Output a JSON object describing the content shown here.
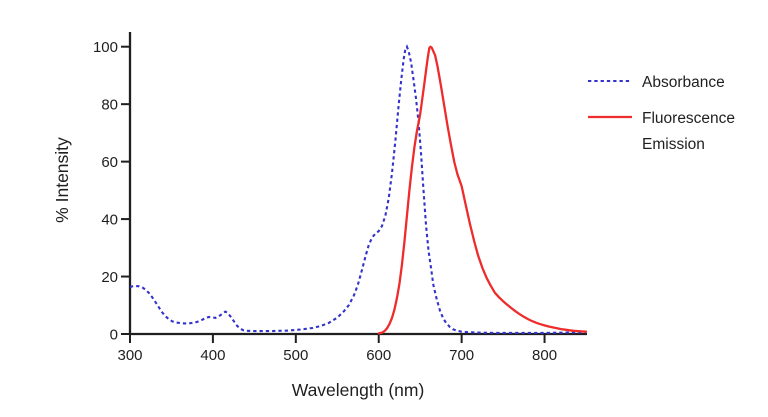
{
  "colors": {
    "absorbance_line": "#3333cc",
    "emission_line": "#ee2c2c",
    "axis": "#1f1f1f",
    "background": "#ffffff"
  },
  "legend": {
    "absorbance": "Absorbance",
    "emission_line1": "Fluorescence",
    "emission_line2": "Emission"
  },
  "chart_data": {
    "type": "line",
    "title": "",
    "xlabel": "Wavelength (nm)",
    "ylabel": "% Intensity",
    "xlim": [
      300,
      850
    ],
    "ylim": [
      0,
      100
    ],
    "x_ticks": [
      300,
      400,
      500,
      600,
      700,
      800
    ],
    "y_ticks": [
      0,
      20,
      40,
      60,
      80,
      100
    ],
    "grid": false,
    "legend_position": "right-outside",
    "series": [
      {
        "name": "Absorbance",
        "color": "#3333cc",
        "line_style": "dotted",
        "points": [
          [
            300,
            16.3
          ],
          [
            303,
            16.6
          ],
          [
            307,
            16.7
          ],
          [
            311,
            16.6
          ],
          [
            315,
            16.2
          ],
          [
            319,
            15.4
          ],
          [
            323,
            14.2
          ],
          [
            327,
            12.7
          ],
          [
            331,
            11.0
          ],
          [
            335,
            9.2
          ],
          [
            339,
            7.5
          ],
          [
            343,
            6.1
          ],
          [
            347,
            5.1
          ],
          [
            351,
            4.4
          ],
          [
            356,
            4.0
          ],
          [
            361,
            3.8
          ],
          [
            366,
            3.7
          ],
          [
            371,
            3.7
          ],
          [
            376,
            3.9
          ],
          [
            381,
            4.2
          ],
          [
            386,
            4.8
          ],
          [
            391,
            5.5
          ],
          [
            395,
            5.9
          ],
          [
            399,
            5.8
          ],
          [
            403,
            5.6
          ],
          [
            407,
            6.1
          ],
          [
            411,
            7.0
          ],
          [
            415,
            7.8
          ],
          [
            418,
            7.3
          ],
          [
            421,
            6.2
          ],
          [
            425,
            4.6
          ],
          [
            429,
            2.9
          ],
          [
            433,
            1.8
          ],
          [
            437,
            1.3
          ],
          [
            441,
            1.1
          ],
          [
            450,
            1.0
          ],
          [
            460,
            1.0
          ],
          [
            470,
            1.0
          ],
          [
            480,
            1.1
          ],
          [
            490,
            1.2
          ],
          [
            500,
            1.4
          ],
          [
            510,
            1.7
          ],
          [
            520,
            2.1
          ],
          [
            530,
            2.8
          ],
          [
            540,
            3.9
          ],
          [
            550,
            5.7
          ],
          [
            558,
            7.9
          ],
          [
            564,
            10.1
          ],
          [
            570,
            13.4
          ],
          [
            575,
            17.3
          ],
          [
            580,
            22.5
          ],
          [
            584,
            27.0
          ],
          [
            588,
            31.0
          ],
          [
            592,
            33.6
          ],
          [
            596,
            34.9
          ],
          [
            600,
            35.8
          ],
          [
            604,
            37.6
          ],
          [
            608,
            41.2
          ],
          [
            612,
            47.2
          ],
          [
            616,
            56.0
          ],
          [
            620,
            67.0
          ],
          [
            624,
            79.5
          ],
          [
            627,
            88.0
          ],
          [
            630,
            95.5
          ],
          [
            632,
            99.0
          ],
          [
            634,
            100.0
          ],
          [
            636,
            98.5
          ],
          [
            639,
            94.5
          ],
          [
            642,
            88.5
          ],
          [
            645,
            82.0
          ],
          [
            648,
            74.0
          ],
          [
            651,
            63.0
          ],
          [
            654,
            50.0
          ],
          [
            657,
            38.0
          ],
          [
            660,
            29.0
          ],
          [
            663,
            23.0
          ],
          [
            666,
            17.0
          ],
          [
            670,
            12.0
          ],
          [
            674,
            8.0
          ],
          [
            678,
            5.3
          ],
          [
            682,
            3.6
          ],
          [
            686,
            2.4
          ],
          [
            690,
            1.6
          ],
          [
            695,
            1.1
          ],
          [
            700,
            0.8
          ],
          [
            710,
            0.6
          ],
          [
            720,
            0.5
          ],
          [
            740,
            0.4
          ],
          [
            760,
            0.4
          ],
          [
            780,
            0.4
          ],
          [
            800,
            0.4
          ],
          [
            825,
            0.5
          ],
          [
            850,
            0.6
          ]
        ]
      },
      {
        "name": "Fluorescence Emission",
        "color": "#ee2c2c",
        "line_style": "solid",
        "points": [
          [
            600,
            0.2
          ],
          [
            604,
            0.5
          ],
          [
            607,
            1.0
          ],
          [
            610,
            2.0
          ],
          [
            613,
            3.5
          ],
          [
            616,
            5.6
          ],
          [
            619,
            8.6
          ],
          [
            622,
            12.6
          ],
          [
            625,
            17.6
          ],
          [
            628,
            24.0
          ],
          [
            631,
            32.0
          ],
          [
            634,
            41.0
          ],
          [
            637,
            50.0
          ],
          [
            640,
            58.0
          ],
          [
            643,
            65.0
          ],
          [
            646,
            70.6
          ],
          [
            648,
            73.4
          ],
          [
            650,
            76.6
          ],
          [
            652,
            80.6
          ],
          [
            655,
            87.0
          ],
          [
            657,
            91.6
          ],
          [
            659,
            95.8
          ],
          [
            661,
            99.5
          ],
          [
            662.5,
            100.0
          ],
          [
            664,
            99.6
          ],
          [
            668,
            97.0
          ],
          [
            671,
            93.0
          ],
          [
            675,
            86.5
          ],
          [
            679,
            79.5
          ],
          [
            683,
            72.5
          ],
          [
            687,
            66.0
          ],
          [
            691,
            60.0
          ],
          [
            695,
            55.5
          ],
          [
            700,
            51.5
          ],
          [
            705,
            44.8
          ],
          [
            710,
            38.4
          ],
          [
            715,
            32.4
          ],
          [
            720,
            27.2
          ],
          [
            725,
            23.0
          ],
          [
            730,
            19.6
          ],
          [
            735,
            16.8
          ],
          [
            740,
            14.4
          ],
          [
            745,
            12.8
          ],
          [
            750,
            11.4
          ],
          [
            755,
            10.2
          ],
          [
            760,
            9.0
          ],
          [
            765,
            7.9
          ],
          [
            770,
            6.9
          ],
          [
            775,
            6.0
          ],
          [
            780,
            5.2
          ],
          [
            785,
            4.5
          ],
          [
            790,
            3.9
          ],
          [
            795,
            3.4
          ],
          [
            800,
            3.0
          ],
          [
            805,
            2.6
          ],
          [
            810,
            2.3
          ],
          [
            815,
            2.0
          ],
          [
            820,
            1.7
          ],
          [
            825,
            1.5
          ],
          [
            830,
            1.3
          ],
          [
            835,
            1.1
          ],
          [
            840,
            1.0
          ],
          [
            845,
            0.9
          ],
          [
            850,
            0.8
          ]
        ]
      }
    ]
  }
}
